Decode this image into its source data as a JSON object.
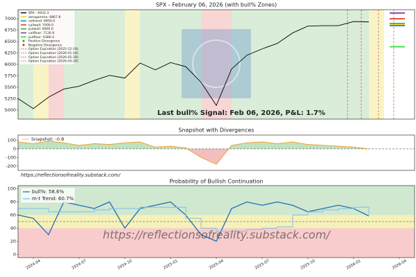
{
  "chart_data": [
    {
      "type": "line",
      "title": "SPX - February 06, 2026 (with bull% Zones)",
      "x": [
        "2024-03",
        "2024-04",
        "2024-05",
        "2024-06",
        "2024-07",
        "2024-08",
        "2024-09",
        "2024-10",
        "2024-11",
        "2024-12",
        "2025-01",
        "2025-02",
        "2025-03",
        "2025-04",
        "2025-05",
        "2025-06",
        "2025-07",
        "2025-08",
        "2025-09",
        "2025-10",
        "2025-11",
        "2025-12",
        "2026-01",
        "2026-02"
      ],
      "series": [
        {
          "name": "SPX : 6932.3",
          "color": "#000000",
          "values": [
            5250,
            5030,
            5280,
            5460,
            5520,
            5650,
            5760,
            5700,
            6030,
            5880,
            6040,
            5950,
            5610,
            5100,
            5900,
            6200,
            6340,
            6460,
            6690,
            6840,
            6850,
            6850,
            6940,
            6932.3
          ]
        }
      ],
      "levels": [
        {
          "name": "zerogamma: 6867.8",
          "value": 6867.8,
          "color": "#e6d800"
        },
        {
          "name": "voltrend: 6850.0",
          "value": 6850.0,
          "color": "#1f77b4"
        },
        {
          "name": "callwall: 7000.0",
          "value": 7000.0,
          "color": "#d62728"
        },
        {
          "name": "putwall: 6900.0",
          "value": 6900.0,
          "color": "#2ca02c"
        },
        {
          "name": "callfloor: 7126.9",
          "value": 7126.9,
          "color": "#7b1fa2"
        },
        {
          "name": "putfloor: 6386.4",
          "value": 6386.4,
          "color": "#22dd22"
        }
      ],
      "markers": [
        {
          "name": "Positive Divergence",
          "color": "#2ca02c"
        },
        {
          "name": "Negative Divergence",
          "color": "#d62728"
        }
      ],
      "option_expirations": [
        {
          "name": "Option Expiration (2025-12-19)",
          "date": "2025-12-19",
          "color": "#e06060"
        },
        {
          "name": "Option Expiration (2026-01-16)",
          "date": "2026-01-16",
          "color": "#e06060"
        },
        {
          "name": "Option Expiration (2026-02-20)",
          "date": "2026-02-20",
          "color": "#e06060"
        },
        {
          "name": "Option Expiration (2026-03-20)",
          "date": "2026-03-20",
          "color": "#e06060"
        }
      ],
      "annotation": "Last bull% Signal: Feb 06, 2026, P&L: 1.7%",
      "annotation_color": "#2e9a2e",
      "xlim": [
        "2024-03",
        "2026-05"
      ],
      "ylim": [
        4800,
        7200
      ],
      "yticks": [
        5000,
        5250,
        5500,
        5750,
        6000,
        6250,
        6500,
        6750,
        7000
      ]
    },
    {
      "type": "area",
      "title": "Snapshot with Divergences",
      "x": [
        "2024-03",
        "2024-04",
        "2024-05",
        "2024-06",
        "2024-07",
        "2024-08",
        "2024-09",
        "2024-10",
        "2024-11",
        "2024-12",
        "2025-01",
        "2025-02",
        "2025-03",
        "2025-04",
        "2025-05",
        "2025-06",
        "2025-07",
        "2025-08",
        "2025-09",
        "2025-10",
        "2025-11",
        "2025-12",
        "2026-01",
        "2026-02"
      ],
      "series": [
        {
          "name": "Snapshot: -0.8",
          "color": "#f0a030",
          "values": [
            80,
            60,
            90,
            70,
            40,
            60,
            50,
            70,
            80,
            20,
            30,
            10,
            -100,
            -180,
            40,
            70,
            80,
            60,
            80,
            50,
            40,
            30,
            20,
            -0.8
          ]
        }
      ],
      "fill_above": "#2ca02c",
      "fill_below": "#d62728",
      "xlim": [
        "2024-03",
        "2026-05"
      ],
      "ylim": [
        -250,
        160
      ],
      "yticks": [
        100,
        0,
        -100,
        -200
      ],
      "footer": "https://reflectionsofreality.substack.com/",
      "footer_color": "#d62728"
    },
    {
      "type": "line",
      "title": "Probability of Bullish Continuation",
      "x": [
        "2024-03",
        "2024-04",
        "2024-05",
        "2024-06",
        "2024-07",
        "2024-08",
        "2024-09",
        "2024-10",
        "2024-11",
        "2024-12",
        "2025-01",
        "2025-02",
        "2025-03",
        "2025-04",
        "2025-05",
        "2025-06",
        "2025-07",
        "2025-08",
        "2025-09",
        "2025-10",
        "2025-11",
        "2025-12",
        "2026-01",
        "2026-02"
      ],
      "series": [
        {
          "name": "bull%: 58.6%",
          "color": "#1f6fb4",
          "values": [
            60,
            55,
            30,
            80,
            75,
            70,
            80,
            40,
            70,
            75,
            80,
            60,
            30,
            20,
            70,
            80,
            75,
            80,
            75,
            65,
            70,
            75,
            70,
            58.6
          ]
        },
        {
          "name": "m-t Trend: 60.7%",
          "color": "#7cc0e8",
          "values": [
            70,
            70,
            65,
            65,
            65,
            68,
            70,
            70,
            72,
            72,
            72,
            55,
            40,
            35,
            35,
            38,
            40,
            42,
            60,
            65,
            68,
            70,
            72,
            60.7
          ]
        }
      ],
      "zones": [
        {
          "from": 60,
          "to": 105,
          "color": "#cfe8cf"
        },
        {
          "from": 40,
          "to": 60,
          "color": "#f6f1b8"
        },
        {
          "from": -5,
          "to": 40,
          "color": "#f8cccc"
        }
      ],
      "reference_line": 50,
      "xlim": [
        "2024-03",
        "2026-05"
      ],
      "ylim": [
        -5,
        105
      ],
      "yticks": [
        0,
        20,
        40,
        60,
        80,
        100
      ],
      "xticks": [
        "2024-04",
        "2024-07",
        "2024-10",
        "2025-01",
        "2025-04",
        "2025-07",
        "2025-10",
        "2026-01",
        "2026-04"
      ],
      "watermark": "https://reflectionsofreality.substack.com/"
    }
  ]
}
